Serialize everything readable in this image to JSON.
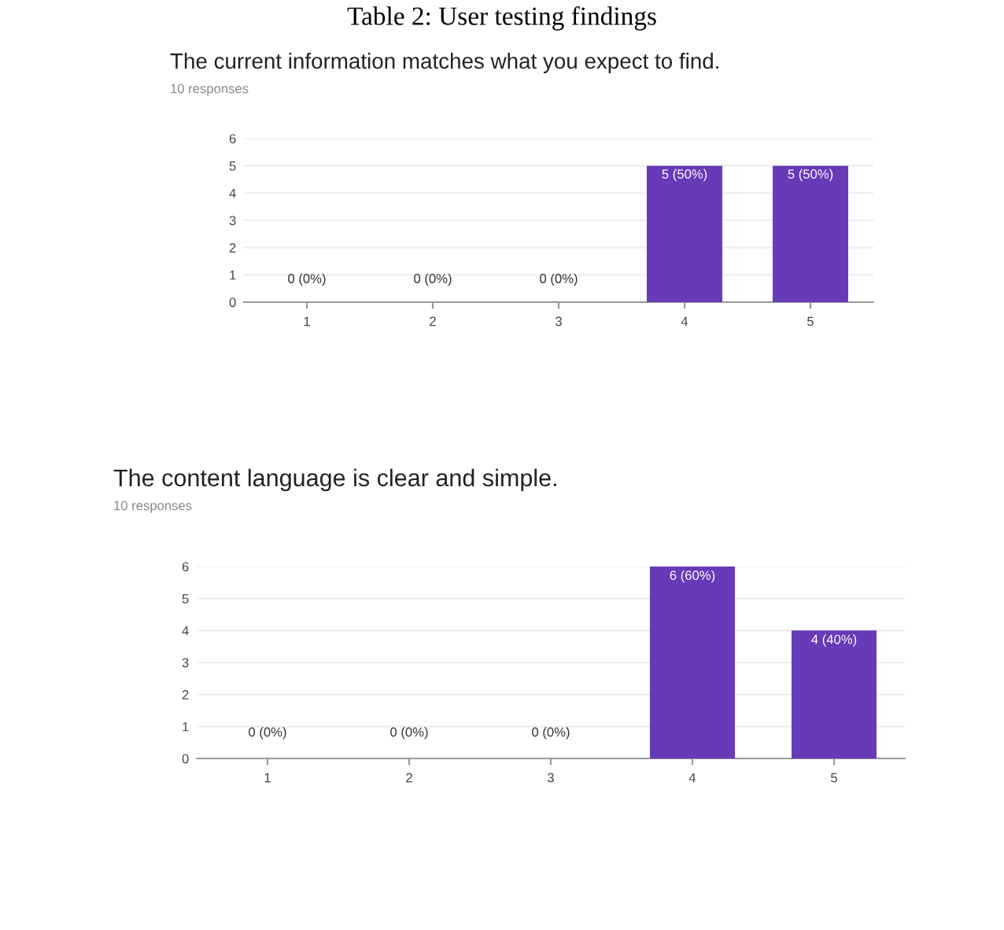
{
  "chart_data": [
    {
      "type": "bar",
      "title": "The current information matches what you expect to find.",
      "subtitle": "10 responses",
      "annotations": [
        "Table 2: User testing findings"
      ],
      "categories": [
        "1",
        "2",
        "3",
        "4",
        "5"
      ],
      "values": [
        0,
        0,
        0,
        5,
        5
      ],
      "value_labels": [
        "0 (0%)",
        "0 (0%)",
        "0 (0%)",
        "5 (50%)",
        "5 (50%)"
      ],
      "color": "#673ab7",
      "ylim": [
        0,
        6
      ],
      "yticks": [
        0,
        1,
        2,
        3,
        4,
        5,
        6
      ],
      "grid": "y",
      "legend": false
    },
    {
      "type": "bar",
      "title": "The content language is clear and simple.",
      "subtitle": "10 responses",
      "categories": [
        "1",
        "2",
        "3",
        "4",
        "5"
      ],
      "values": [
        0,
        0,
        0,
        6,
        4
      ],
      "value_labels": [
        "0 (0%)",
        "0 (0%)",
        "0 (0%)",
        "6 (60%)",
        "4 (40%)"
      ],
      "color": "#673ab7",
      "ylim": [
        0,
        6
      ],
      "yticks": [
        0,
        1,
        2,
        3,
        4,
        5,
        6
      ],
      "grid": "y",
      "legend": false
    }
  ]
}
